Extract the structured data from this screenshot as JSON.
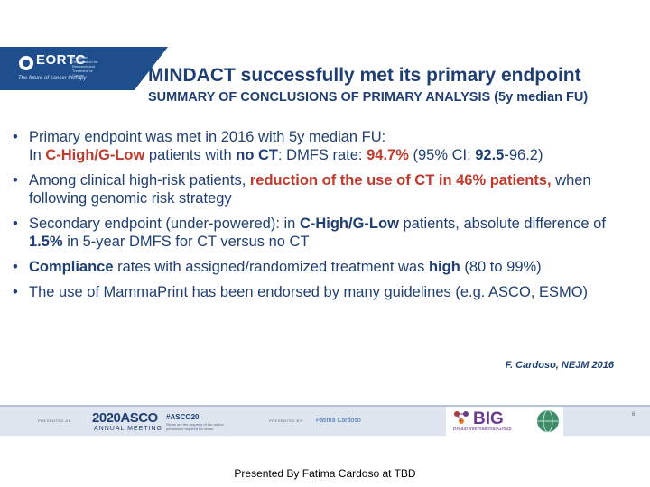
{
  "logo": {
    "name": "EORTC",
    "subline": "European Organisation for Research and Treatment of Cancer",
    "tagline": "The future of cancer therapy"
  },
  "slide": {
    "title": "MINDACT successfully met its primary endpoint",
    "subtitle": "SUMMARY OF CONCLUSIONS OF PRIMARY ANALYSIS (5y median FU)",
    "bullet_symbol": "•",
    "bullets": [
      {
        "line1": "Primary endpoint was met in 2016 with 5y median FU:",
        "p1": "In ",
        "p2": "C-High/G-Low",
        "p3": " patients with ",
        "p4": "no CT",
        "p5": ": DMFS rate: ",
        "p6": "94.7%",
        "p7": " (95% CI: ",
        "p8": "92.5",
        "p9": "-96.2)"
      },
      {
        "p1": "Among clinical high-risk patients, ",
        "p2": "reduction of the use of CT in 46% patients,",
        "p3": " when following genomic risk strategy"
      },
      {
        "p1": "Secondary endpoint (under-powered): in ",
        "p2": "C-High/G-Low",
        "p3": " patients, absolute difference of ",
        "p4": "1.5%",
        "p5": " in 5-year DMFS for CT versus no CT"
      },
      {
        "p1": "Compliance",
        "p2": " rates with assigned/randomized treatment was ",
        "p3": "high",
        "p4": " (80 to 99%)"
      },
      {
        "p1": "The use of MammaPrint has been endorsed by many guidelines  (e.g. ASCO, ESMO)"
      }
    ],
    "citation": "F. Cardoso, NEJM 2016",
    "page_number": "6"
  },
  "footer": {
    "presented_at": "PRESENTED AT:",
    "asco_title": "2020ASCO",
    "asco_sub": "ANNUAL MEETING",
    "hashtag": "#ASCO20",
    "hashtag_note": "Slides are the property of the author, permission required for reuse.",
    "presented_by": "PRESENTED BY:",
    "presenter": "Fatima Cardoso",
    "big_logo": "BIG",
    "big_sub": "Breast International Group"
  },
  "caption": "Presented By Fatima Cardoso at TBD",
  "colors": {
    "navy": "#1f3f74",
    "red": "#c0392b",
    "eortc_blue": "#1f4e8c",
    "big_purple": "#6a3a8c"
  }
}
